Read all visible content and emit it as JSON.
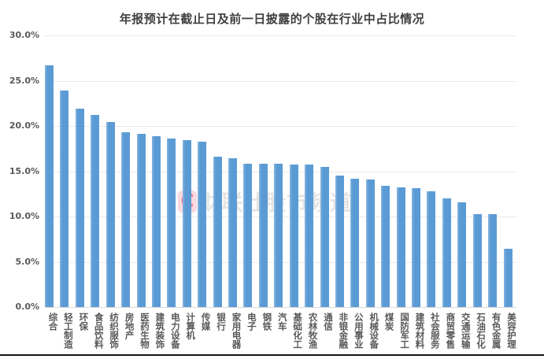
{
  "chart_data": {
    "type": "bar",
    "title": "年报预计在截止日及前一日披露的个股在行业中占比情况",
    "xlabel": "",
    "ylabel": "",
    "unit": "%",
    "ylim": [
      0,
      30
    ],
    "y_ticks": [
      "30.0%",
      "25.0%",
      "20.0%",
      "15.0%",
      "10.0%",
      "5.0%",
      "0.0%"
    ],
    "grid": true,
    "legend": false,
    "categories": [
      "综合",
      "轻工制造",
      "环保",
      "食品饮料",
      "纺织服饰",
      "房地产",
      "医药生物",
      "建筑装饰",
      "电力设备",
      "计算机",
      "传媒",
      "银行",
      "家用电器",
      "电子",
      "钢铁",
      "汽车",
      "基础化工",
      "农林牧渔",
      "通信",
      "非银金融",
      "公用事业",
      "机械设备",
      "煤炭",
      "国防军工",
      "建筑材料",
      "社会服务",
      "商贸零售",
      "交通运输",
      "石油石化",
      "有色金属",
      "美容护理"
    ],
    "values": [
      26.7,
      23.9,
      21.9,
      21.2,
      20.4,
      19.3,
      19.1,
      18.9,
      18.6,
      18.4,
      18.3,
      16.6,
      16.4,
      15.8,
      15.8,
      15.8,
      15.7,
      15.7,
      15.5,
      14.5,
      14.2,
      14.1,
      13.4,
      13.2,
      13.1,
      12.8,
      12.0,
      11.6,
      10.3,
      10.3,
      6.4
    ]
  },
  "watermark": {
    "logo_letter": "C",
    "text": "财联社股市频道"
  },
  "colors": {
    "background": "#FFFFFF",
    "bar": "#5B9BD5",
    "bar_edge_highlight": "#8AB6E0",
    "gridline": "#E9E9E9",
    "title_text": "#3F3F3F",
    "axis_text": "#595959",
    "watermark_logo": "#E94969",
    "watermark_text": "#AAAAAA",
    "bottom_border": "#151515"
  }
}
